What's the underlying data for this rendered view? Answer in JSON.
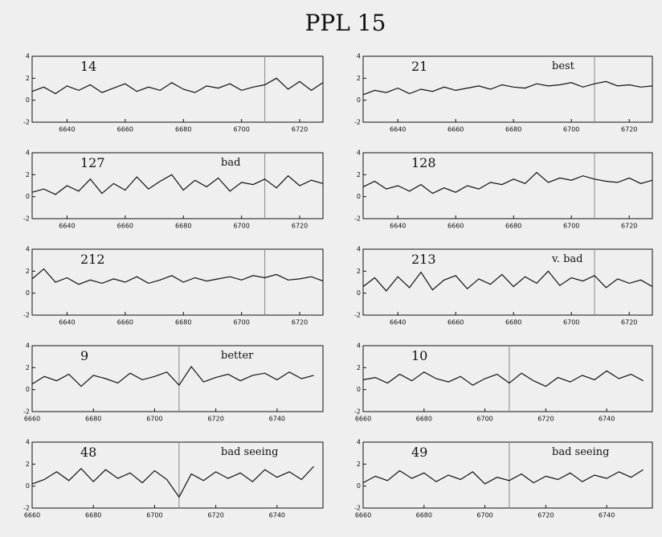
{
  "title": "PPL 15",
  "chart_data": [
    {
      "type": "line",
      "label": "14",
      "xlim": [
        6628,
        6728
      ],
      "ylim": [
        -2,
        4
      ],
      "xticks": [
        6640,
        6660,
        6680,
        6700,
        6720
      ],
      "yticks": [
        -2,
        0,
        2,
        4
      ],
      "vline": 6708,
      "x": [
        6628,
        6632,
        6636,
        6640,
        6644,
        6648,
        6652,
        6656,
        6660,
        6664,
        6668,
        6672,
        6676,
        6680,
        6684,
        6688,
        6692,
        6696,
        6700,
        6704,
        6708,
        6712,
        6716,
        6720,
        6724,
        6728
      ],
      "values": [
        0.8,
        1.2,
        0.6,
        1.3,
        0.9,
        1.4,
        0.7,
        1.1,
        1.5,
        0.8,
        1.2,
        0.9,
        1.6,
        1.0,
        0.7,
        1.3,
        1.1,
        1.5,
        0.9,
        1.2,
        1.4,
        2.0,
        1.0,
        1.7,
        0.9,
        1.6
      ]
    },
    {
      "type": "line",
      "label": "21",
      "note": "best",
      "xlim": [
        6628,
        6728
      ],
      "ylim": [
        -2,
        4
      ],
      "xticks": [
        6640,
        6660,
        6680,
        6700,
        6720
      ],
      "yticks": [
        -2,
        0,
        2,
        4
      ],
      "vline": 6708,
      "x": [
        6628,
        6632,
        6636,
        6640,
        6644,
        6648,
        6652,
        6656,
        6660,
        6664,
        6668,
        6672,
        6676,
        6680,
        6684,
        6688,
        6692,
        6696,
        6700,
        6704,
        6708,
        6712,
        6716,
        6720,
        6724,
        6728
      ],
      "values": [
        0.5,
        0.9,
        0.7,
        1.1,
        0.6,
        1.0,
        0.8,
        1.2,
        0.9,
        1.1,
        1.3,
        1.0,
        1.4,
        1.2,
        1.1,
        1.5,
        1.3,
        1.4,
        1.6,
        1.2,
        1.5,
        1.7,
        1.3,
        1.4,
        1.2,
        1.3
      ]
    },
    {
      "type": "line",
      "label": "127",
      "note": "bad",
      "xlim": [
        6628,
        6728
      ],
      "ylim": [
        -2,
        4
      ],
      "xticks": [
        6640,
        6660,
        6680,
        6700,
        6720
      ],
      "yticks": [
        -2,
        0,
        2,
        4
      ],
      "vline": 6708,
      "x": [
        6628,
        6632,
        6636,
        6640,
        6644,
        6648,
        6652,
        6656,
        6660,
        6664,
        6668,
        6672,
        6676,
        6680,
        6684,
        6688,
        6692,
        6696,
        6700,
        6704,
        6708,
        6712,
        6716,
        6720,
        6724,
        6728
      ],
      "values": [
        0.4,
        0.7,
        0.2,
        1.0,
        0.5,
        1.6,
        0.3,
        1.2,
        0.6,
        1.8,
        0.7,
        1.4,
        2.0,
        0.6,
        1.5,
        0.9,
        1.7,
        0.5,
        1.3,
        1.1,
        1.6,
        0.8,
        1.9,
        1.0,
        1.5,
        1.2
      ]
    },
    {
      "type": "line",
      "label": "128",
      "xlim": [
        6628,
        6728
      ],
      "ylim": [
        -2,
        4
      ],
      "xticks": [
        6640,
        6660,
        6680,
        6700,
        6720
      ],
      "yticks": [
        -2,
        0,
        2,
        4
      ],
      "vline": 6708,
      "x": [
        6628,
        6632,
        6636,
        6640,
        6644,
        6648,
        6652,
        6656,
        6660,
        6664,
        6668,
        6672,
        6676,
        6680,
        6684,
        6688,
        6692,
        6696,
        6700,
        6704,
        6708,
        6712,
        6716,
        6720,
        6724,
        6728
      ],
      "values": [
        0.9,
        1.4,
        0.7,
        1.0,
        0.5,
        1.1,
        0.3,
        0.8,
        0.4,
        1.0,
        0.7,
        1.3,
        1.1,
        1.6,
        1.2,
        2.2,
        1.3,
        1.7,
        1.5,
        1.9,
        1.6,
        1.4,
        1.3,
        1.7,
        1.2,
        1.5
      ]
    },
    {
      "type": "line",
      "label": "212",
      "xlim": [
        6628,
        6728
      ],
      "ylim": [
        -2,
        4
      ],
      "xticks": [
        6640,
        6660,
        6680,
        6700,
        6720
      ],
      "yticks": [
        -2,
        0,
        2,
        4
      ],
      "vline": 6708,
      "x": [
        6628,
        6632,
        6636,
        6640,
        6644,
        6648,
        6652,
        6656,
        6660,
        6664,
        6668,
        6672,
        6676,
        6680,
        6684,
        6688,
        6692,
        6696,
        6700,
        6704,
        6708,
        6712,
        6716,
        6720,
        6724,
        6728
      ],
      "values": [
        1.3,
        2.2,
        1.0,
        1.4,
        0.8,
        1.2,
        0.9,
        1.3,
        1.0,
        1.5,
        0.9,
        1.2,
        1.6,
        1.0,
        1.4,
        1.1,
        1.3,
        1.5,
        1.2,
        1.6,
        1.4,
        1.7,
        1.2,
        1.3,
        1.5,
        1.1
      ]
    },
    {
      "type": "line",
      "label": "213",
      "note": "v. bad",
      "xlim": [
        6628,
        6728
      ],
      "ylim": [
        -2,
        4
      ],
      "xticks": [
        6640,
        6660,
        6680,
        6700,
        6720
      ],
      "yticks": [
        -2,
        0,
        2,
        4
      ],
      "vline": 6708,
      "x": [
        6628,
        6632,
        6636,
        6640,
        6644,
        6648,
        6652,
        6656,
        6660,
        6664,
        6668,
        6672,
        6676,
        6680,
        6684,
        6688,
        6692,
        6696,
        6700,
        6704,
        6708,
        6712,
        6716,
        6720,
        6724,
        6728
      ],
      "values": [
        0.6,
        1.4,
        0.2,
        1.5,
        0.5,
        1.9,
        0.3,
        1.2,
        1.6,
        0.4,
        1.3,
        0.8,
        1.7,
        0.6,
        1.5,
        0.9,
        2.0,
        0.7,
        1.4,
        1.1,
        1.6,
        0.5,
        1.3,
        0.9,
        1.2,
        0.6
      ]
    },
    {
      "type": "line",
      "label": "9",
      "note": "better",
      "xlim": [
        6660,
        6755
      ],
      "ylim": [
        -2,
        4
      ],
      "xticks": [
        6660,
        6680,
        6700,
        6720,
        6740
      ],
      "yticks": [
        -2,
        0,
        2,
        4
      ],
      "vline": 6708,
      "x": [
        6660,
        6664,
        6668,
        6672,
        6676,
        6680,
        6684,
        6688,
        6692,
        6696,
        6700,
        6704,
        6708,
        6712,
        6716,
        6720,
        6724,
        6728,
        6732,
        6736,
        6740,
        6744,
        6748,
        6752
      ],
      "values": [
        0.5,
        1.2,
        0.8,
        1.4,
        0.3,
        1.3,
        1.0,
        0.6,
        1.5,
        0.9,
        1.2,
        1.6,
        0.4,
        2.1,
        0.7,
        1.1,
        1.4,
        0.8,
        1.3,
        1.5,
        0.9,
        1.6,
        1.0,
        1.3
      ]
    },
    {
      "type": "line",
      "label": "10",
      "xlim": [
        6660,
        6755
      ],
      "ylim": [
        -2,
        4
      ],
      "xticks": [
        6660,
        6680,
        6700,
        6720,
        6740
      ],
      "yticks": [
        -2,
        0,
        2,
        4
      ],
      "vline": 6708,
      "x": [
        6660,
        6664,
        6668,
        6672,
        6676,
        6680,
        6684,
        6688,
        6692,
        6696,
        6700,
        6704,
        6708,
        6712,
        6716,
        6720,
        6724,
        6728,
        6732,
        6736,
        6740,
        6744,
        6748,
        6752
      ],
      "values": [
        0.9,
        1.1,
        0.6,
        1.4,
        0.8,
        1.6,
        1.0,
        0.7,
        1.2,
        0.4,
        1.0,
        1.4,
        0.6,
        1.5,
        0.8,
        0.3,
        1.1,
        0.7,
        1.3,
        0.9,
        1.7,
        1.0,
        1.4,
        0.8
      ]
    },
    {
      "type": "line",
      "label": "48",
      "note": "bad seeing",
      "xlim": [
        6660,
        6755
      ],
      "ylim": [
        -2,
        4
      ],
      "xticks": [
        6660,
        6680,
        6700,
        6720,
        6740
      ],
      "yticks": [
        -2,
        0,
        2,
        4
      ],
      "vline": 6708,
      "x": [
        6660,
        6664,
        6668,
        6672,
        6676,
        6680,
        6684,
        6688,
        6692,
        6696,
        6700,
        6704,
        6708,
        6712,
        6716,
        6720,
        6724,
        6728,
        6732,
        6736,
        6740,
        6744,
        6748,
        6752
      ],
      "values": [
        0.2,
        0.6,
        1.3,
        0.5,
        1.6,
        0.4,
        1.5,
        0.7,
        1.2,
        0.3,
        1.4,
        0.6,
        -1.0,
        1.1,
        0.5,
        1.3,
        0.7,
        1.2,
        0.4,
        1.5,
        0.8,
        1.3,
        0.6,
        1.8
      ]
    },
    {
      "type": "line",
      "label": "49",
      "note": "bad seeing",
      "xlim": [
        6660,
        6755
      ],
      "ylim": [
        -2,
        4
      ],
      "xticks": [
        6660,
        6680,
        6700,
        6720,
        6740
      ],
      "yticks": [
        -2,
        0,
        2,
        4
      ],
      "vline": 6708,
      "x": [
        6660,
        6664,
        6668,
        6672,
        6676,
        6680,
        6684,
        6688,
        6692,
        6696,
        6700,
        6704,
        6708,
        6712,
        6716,
        6720,
        6724,
        6728,
        6732,
        6736,
        6740,
        6744,
        6748,
        6752
      ],
      "values": [
        0.3,
        0.9,
        0.5,
        1.4,
        0.7,
        1.2,
        0.4,
        1.0,
        0.6,
        1.3,
        0.2,
        0.8,
        0.5,
        1.1,
        0.3,
        0.9,
        0.6,
        1.2,
        0.4,
        1.0,
        0.7,
        1.3,
        0.8,
        1.5
      ]
    }
  ]
}
